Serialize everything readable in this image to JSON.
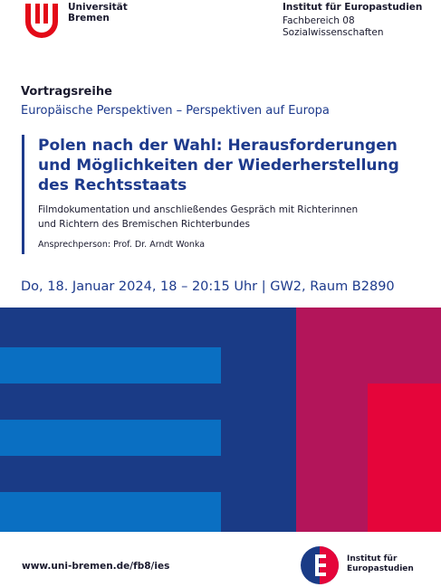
{
  "header": {
    "university_line1": "Universität",
    "university_line2": "Bremen",
    "institute": "Institut für Europastudien",
    "department": "Fachbereich 08",
    "faculty": "Sozialwissenschaften"
  },
  "series": {
    "label": "Vortragsreihe",
    "title": "Europäische Perspektiven – Perspektiven auf Europa"
  },
  "event": {
    "title_line1": "Polen nach der Wahl: Herausforderungen",
    "title_line2": "und Möglichkeiten der Wiederherstellung",
    "title_line3": "des Rechtsstaats",
    "subtitle_line1": "Filmdokumentation und anschließendes Gespräch mit Richterinnen",
    "subtitle_line2": "und Richtern des Bremischen Richterbundes",
    "contact": "Ansprechperson: Prof. Dr. Arndt Wonka",
    "date_location": "Do, 18. Januar 2024, 18 – 20:15 Uhr | GW2, Raum B2890"
  },
  "footer": {
    "url": "www.uni-bremen.de/fb8/ies",
    "logo_line1": "Institut für",
    "logo_line2": "Europastudien"
  },
  "colors": {
    "navy": "#1a3b86",
    "dark_red": "#b3155a",
    "bright_red": "#e5053a",
    "light_blue": "#0a6fc2",
    "uni_red": "#e30a18"
  }
}
